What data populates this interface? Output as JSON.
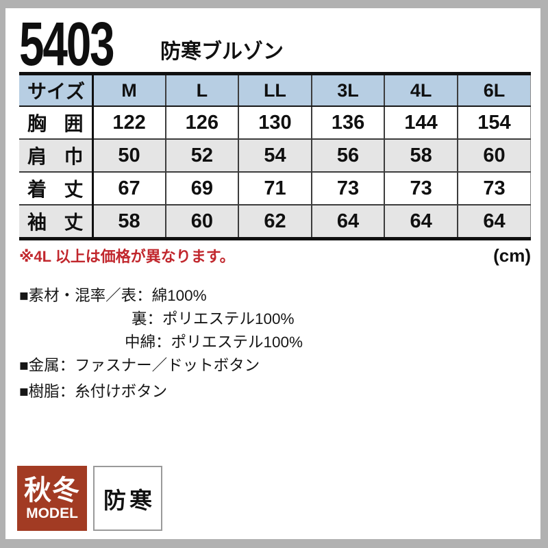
{
  "product": {
    "code": "5403",
    "name": "防寒ブルゾン"
  },
  "size_table": {
    "header": [
      "サイズ",
      "M",
      "L",
      "LL",
      "3L",
      "4L",
      "6L"
    ],
    "rows": [
      {
        "label": "胸囲",
        "values": [
          "122",
          "126",
          "130",
          "136",
          "144",
          "154"
        ]
      },
      {
        "label": "肩巾",
        "values": [
          "50",
          "52",
          "54",
          "56",
          "58",
          "60"
        ]
      },
      {
        "label": "着丈",
        "values": [
          "67",
          "69",
          "71",
          "73",
          "73",
          "73"
        ]
      },
      {
        "label": "袖丈",
        "values": [
          "58",
          "60",
          "62",
          "64",
          "64",
          "64"
        ]
      }
    ],
    "note": "※4L 以上は価格が異なります。",
    "unit": "(cm)"
  },
  "specs": {
    "material_line1": "■素材・混率／表：綿100%",
    "material_line2": "裏：ポリエステル100%",
    "material_line3": "中綿：ポリエステル100%",
    "metal": "■金属：ファスナー／ドットボタン",
    "resin": "■樹脂：糸付けボタン"
  },
  "badges": {
    "season": {
      "main": "秋冬",
      "sub": "MODEL",
      "bg_color": "#a23b23"
    },
    "feature": {
      "label": "防寒"
    }
  },
  "colors": {
    "table_header_bg": "#b7cee3",
    "table_alt_row_bg": "#e5e5e5",
    "note_red": "#c1272d",
    "frame_gray": "#b1b1b1",
    "badge_rust": "#a23b23"
  }
}
